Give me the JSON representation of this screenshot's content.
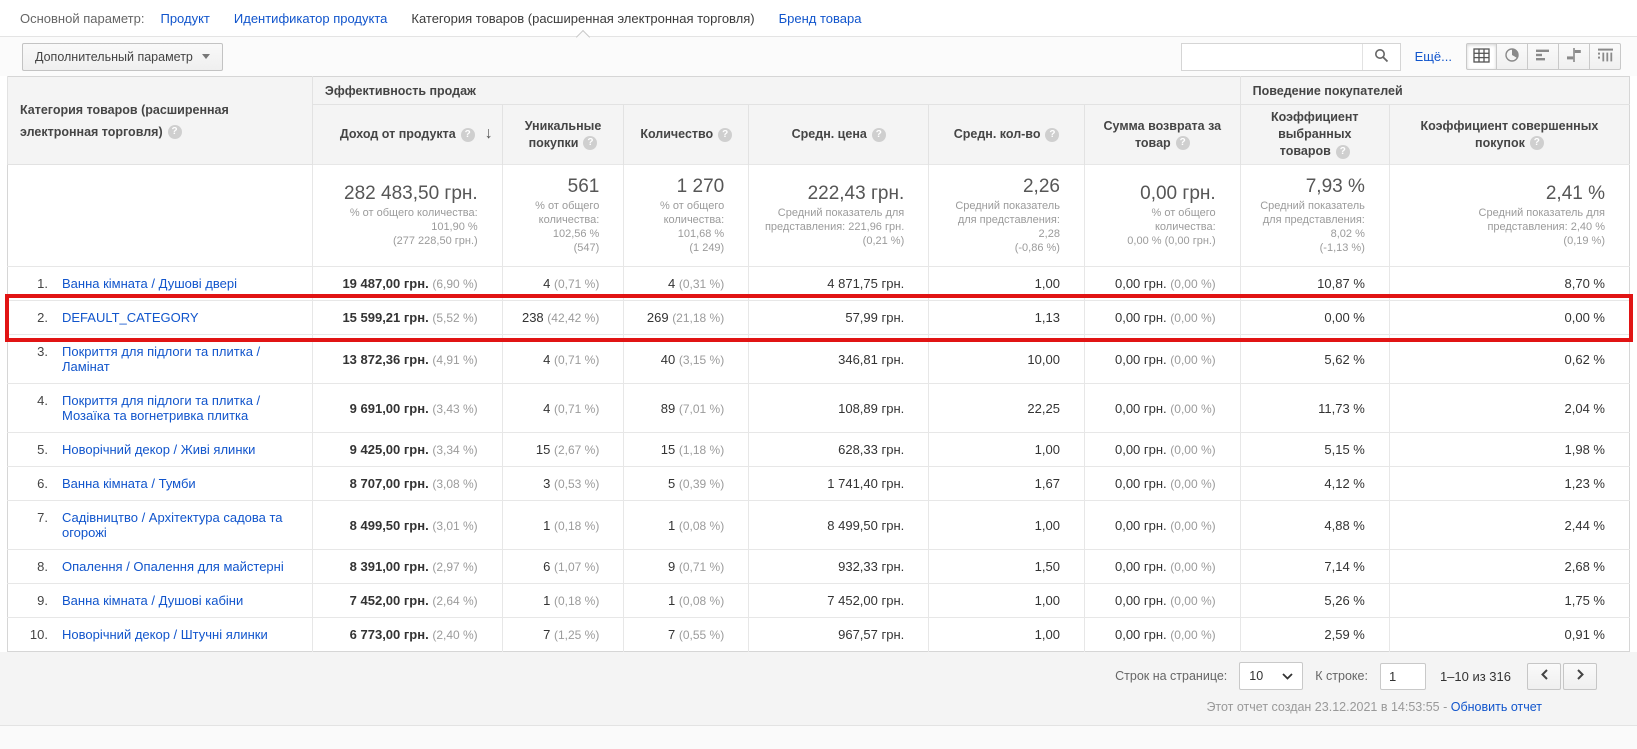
{
  "colors": {
    "link": "#1155cc",
    "annotation_red": "#e11414",
    "header_bg": "#f4f4f4"
  },
  "icons": {
    "help": "?",
    "sort_desc": "↓"
  },
  "primary_dimension": {
    "label": "Основной параметр:",
    "tabs": [
      {
        "label": "Продукт",
        "selected": false
      },
      {
        "label": "Идентификатор продукта",
        "selected": false
      },
      {
        "label": "Категория товаров (расширенная электронная торговля)",
        "selected": true
      },
      {
        "label": "Бренд товара",
        "selected": false
      }
    ]
  },
  "toolbar": {
    "secondary_button": "Дополнительный параметр",
    "search_value": "",
    "more_link": "Ещё...",
    "view_buttons": [
      "table-view",
      "percentage-view",
      "performance-view",
      "comparison-view",
      "pivot-view"
    ],
    "active_view": "table-view"
  },
  "table": {
    "dimension_header": "Категория товаров (расширенная электронная торговля)",
    "group_headers": [
      "Эффективность продаж",
      "Поведение покупателей"
    ],
    "columns": [
      "Доход от продукта",
      "Уникальные покупки",
      "Количество",
      "Средн. цена",
      "Средн. кол-во",
      "Сумма возврата за товар",
      "Коэффициент выбранных товаров",
      "Коэффициент совершенных покупок"
    ],
    "totals": {
      "revenue": {
        "value": "282 483,50 грн.",
        "line2": "% от общего количества: 101,90 %",
        "line3": "(277 228,50 грн.)"
      },
      "unique": {
        "value": "561",
        "line2": "% от общего количества: 102,56 %",
        "line3": "(547)"
      },
      "quantity": {
        "value": "1 270",
        "line2": "% от общего количества: 101,68 %",
        "line3": "(1 249)"
      },
      "avg_price": {
        "value": "222,43 грн.",
        "line2": "Средний показатель для представления: 221,96 грн.",
        "line3": "(0,21 %)"
      },
      "avg_qty": {
        "value": "2,26",
        "line2": "Средний показатель для представления: 2,28",
        "line3": "(-0,86 %)"
      },
      "refund": {
        "value": "0,00 грн.",
        "line2": "% от общего количества:",
        "line3": "0,00 % (0,00 грн.)"
      },
      "cart_rate": {
        "value": "7,93 %",
        "line2": "Средний показатель для представления: 8,02 %",
        "line3": "(-1,13 %)"
      },
      "purchase_rate": {
        "value": "2,41 %",
        "line2": "Средний показатель для представления: 2,40 %",
        "line3": "(0,19 %)"
      }
    },
    "rows": [
      {
        "rank": "1.",
        "category": "Ванна кімната / Душові двері",
        "revenue": "19 487,00 грн.",
        "revenue_pct": "(6,90 %)",
        "unique": "4",
        "unique_pct": "(0,71 %)",
        "qty": "4",
        "qty_pct": "(0,31 %)",
        "price": "4 871,75 грн.",
        "avg_qty": "1,00",
        "refund": "0,00 грн.",
        "refund_pct": "(0,00 %)",
        "cart_rate": "10,87 %",
        "purchase_rate": "8,70 %",
        "highlighted": false
      },
      {
        "rank": "2.",
        "category": "DEFAULT_CATEGORY",
        "revenue": "15 599,21 грн.",
        "revenue_pct": "(5,52 %)",
        "unique": "238",
        "unique_pct": "(42,42 %)",
        "qty": "269",
        "qty_pct": "(21,18 %)",
        "price": "57,99 грн.",
        "avg_qty": "1,13",
        "refund": "0,00 грн.",
        "refund_pct": "(0,00 %)",
        "cart_rate": "0,00 %",
        "purchase_rate": "0,00 %",
        "highlighted": true
      },
      {
        "rank": "3.",
        "category": "Покриття для підлоги та плитка / Ламінат",
        "revenue": "13 872,36 грн.",
        "revenue_pct": "(4,91 %)",
        "unique": "4",
        "unique_pct": "(0,71 %)",
        "qty": "40",
        "qty_pct": "(3,15 %)",
        "price": "346,81 грн.",
        "avg_qty": "10,00",
        "refund": "0,00 грн.",
        "refund_pct": "(0,00 %)",
        "cart_rate": "5,62 %",
        "purchase_rate": "0,62 %",
        "highlighted": false
      },
      {
        "rank": "4.",
        "category": "Покриття для підлоги та плитка / Мозаїка та вогнетривка плитка",
        "revenue": "9 691,00 грн.",
        "revenue_pct": "(3,43 %)",
        "unique": "4",
        "unique_pct": "(0,71 %)",
        "qty": "89",
        "qty_pct": "(7,01 %)",
        "price": "108,89 грн.",
        "avg_qty": "22,25",
        "refund": "0,00 грн.",
        "refund_pct": "(0,00 %)",
        "cart_rate": "11,73 %",
        "purchase_rate": "2,04 %",
        "highlighted": false
      },
      {
        "rank": "5.",
        "category": "Новорічний декор / Живі ялинки",
        "revenue": "9 425,00 грн.",
        "revenue_pct": "(3,34 %)",
        "unique": "15",
        "unique_pct": "(2,67 %)",
        "qty": "15",
        "qty_pct": "(1,18 %)",
        "price": "628,33 грн.",
        "avg_qty": "1,00",
        "refund": "0,00 грн.",
        "refund_pct": "(0,00 %)",
        "cart_rate": "5,15 %",
        "purchase_rate": "1,98 %",
        "highlighted": false
      },
      {
        "rank": "6.",
        "category": "Ванна кімната / Тумби",
        "revenue": "8 707,00 грн.",
        "revenue_pct": "(3,08 %)",
        "unique": "3",
        "unique_pct": "(0,53 %)",
        "qty": "5",
        "qty_pct": "(0,39 %)",
        "price": "1 741,40 грн.",
        "avg_qty": "1,67",
        "refund": "0,00 грн.",
        "refund_pct": "(0,00 %)",
        "cart_rate": "4,12 %",
        "purchase_rate": "1,23 %",
        "highlighted": false
      },
      {
        "rank": "7.",
        "category": "Садівництво / Архітектура садова та огорожі",
        "revenue": "8 499,50 грн.",
        "revenue_pct": "(3,01 %)",
        "unique": "1",
        "unique_pct": "(0,18 %)",
        "qty": "1",
        "qty_pct": "(0,08 %)",
        "price": "8 499,50 грн.",
        "avg_qty": "1,00",
        "refund": "0,00 грн.",
        "refund_pct": "(0,00 %)",
        "cart_rate": "4,88 %",
        "purchase_rate": "2,44 %",
        "highlighted": false
      },
      {
        "rank": "8.",
        "category": "Опалення / Опалення для майстерні",
        "revenue": "8 391,00 грн.",
        "revenue_pct": "(2,97 %)",
        "unique": "6",
        "unique_pct": "(1,07 %)",
        "qty": "9",
        "qty_pct": "(0,71 %)",
        "price": "932,33 грн.",
        "avg_qty": "1,50",
        "refund": "0,00 грн.",
        "refund_pct": "(0,00 %)",
        "cart_rate": "7,14 %",
        "purchase_rate": "2,68 %",
        "highlighted": false
      },
      {
        "rank": "9.",
        "category": "Ванна кімната / Душові кабіни",
        "revenue": "7 452,00 грн.",
        "revenue_pct": "(2,64 %)",
        "unique": "1",
        "unique_pct": "(0,18 %)",
        "qty": "1",
        "qty_pct": "(0,08 %)",
        "price": "7 452,00 грн.",
        "avg_qty": "1,00",
        "refund": "0,00 грн.",
        "refund_pct": "(0,00 %)",
        "cart_rate": "5,26 %",
        "purchase_rate": "1,75 %",
        "highlighted": false
      },
      {
        "rank": "10.",
        "category": "Новорічний декор / Штучні ялинки",
        "revenue": "6 773,00 грн.",
        "revenue_pct": "(2,40 %)",
        "unique": "7",
        "unique_pct": "(1,25 %)",
        "qty": "7",
        "qty_pct": "(0,55 %)",
        "price": "967,57 грн.",
        "avg_qty": "1,00",
        "refund": "0,00 грн.",
        "refund_pct": "(0,00 %)",
        "cart_rate": "2,59 %",
        "purchase_rate": "0,91 %",
        "highlighted": false
      }
    ]
  },
  "pagination": {
    "rows_label": "Строк на странице:",
    "rows_per_page": "10",
    "goto_label": "К строке:",
    "goto_value": "1",
    "range": "1–10 из 316"
  },
  "footer": {
    "created_text": "Этот отчет создан 23.12.2021 в 14:53:55 -",
    "refresh_link": "Обновить отчет"
  }
}
